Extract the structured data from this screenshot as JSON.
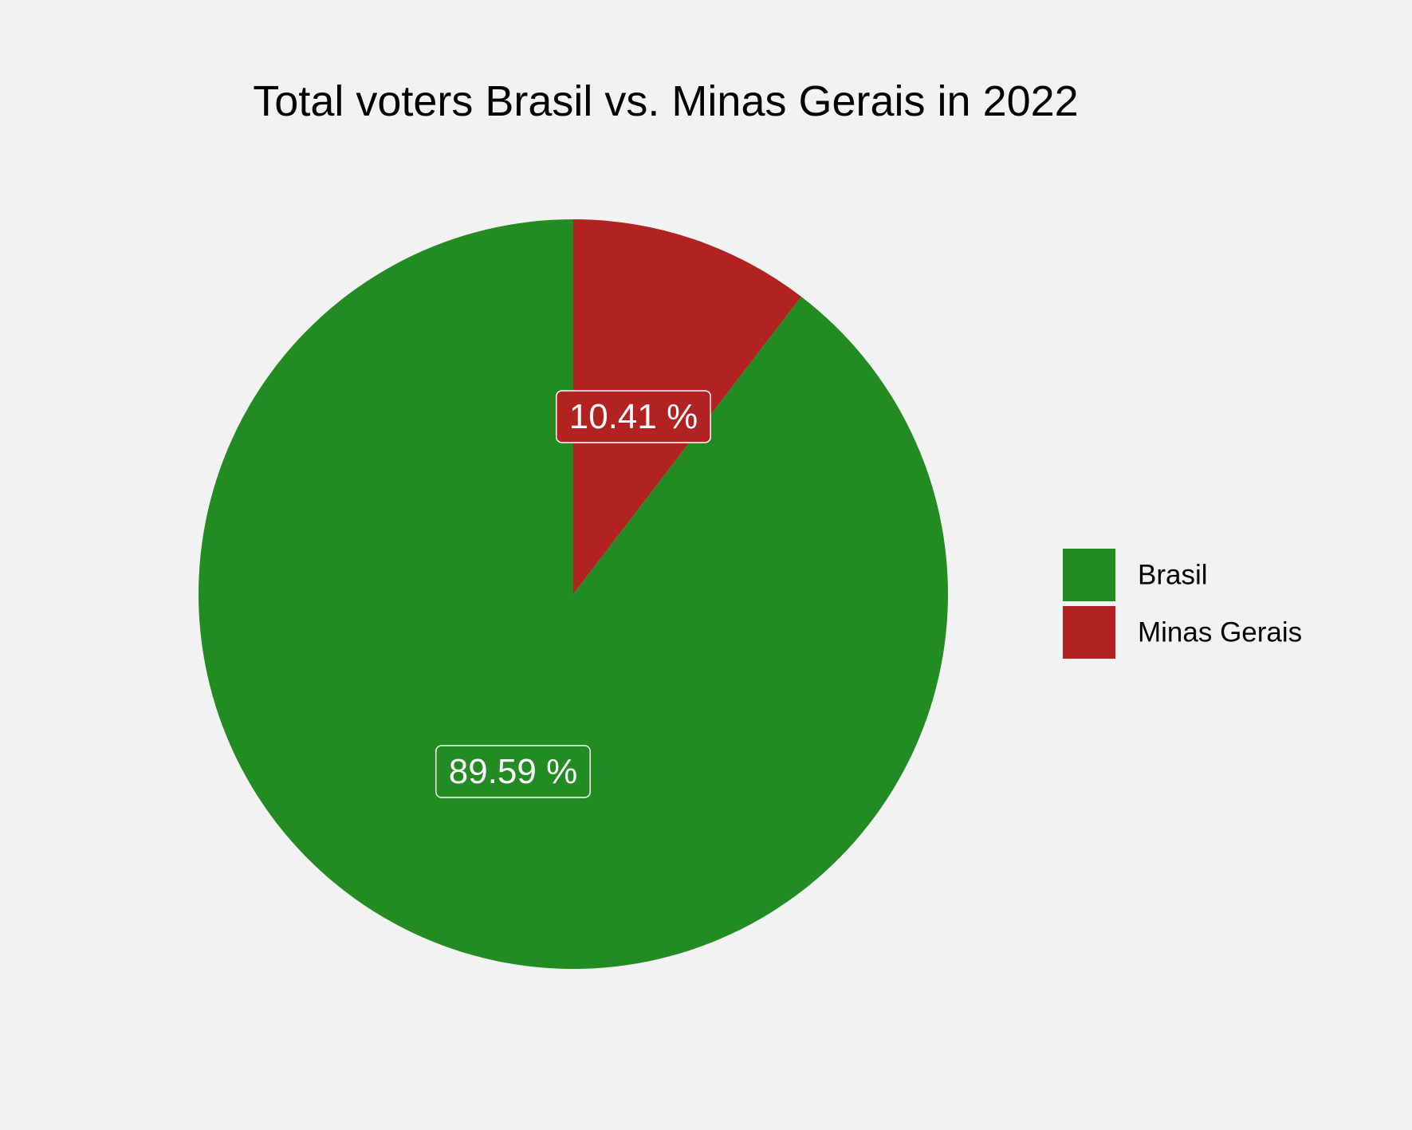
{
  "chart_data": {
    "type": "pie",
    "title": "Total voters Brasil vs. Minas Gerais in 2022",
    "slices": [
      {
        "name": "Minas Gerais",
        "value": 10.41,
        "label": "10.41 %",
        "color": "#b22222"
      },
      {
        "name": "Brasil",
        "value": 89.59,
        "label": "89.59 %",
        "color": "#228b22"
      }
    ],
    "legend": {
      "position": "right",
      "items": [
        {
          "name": "Brasil",
          "color": "#228b22"
        },
        {
          "name": "Minas Gerais",
          "color": "#b22222"
        }
      ]
    },
    "start_angle": "12 o'clock",
    "direction": "clockwise"
  },
  "colors": {
    "background": "#f2f2f2"
  }
}
